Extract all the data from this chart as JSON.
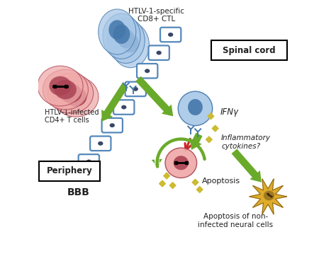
{
  "bg_color": "#ffffff",
  "labels": {
    "htlv_ctls": "HTLV-1-specific\nCD8+ CTL",
    "htlv_cd4": "HTLV-1-infected\nCD4+ T cells",
    "spinal_cord": "Spinal cord",
    "periphery": "Periphery",
    "bbb": "BBB",
    "ifny": "IFNγ",
    "inflammatory": "Inflammatory\ncytokines?",
    "apoptosis": "Apoptosis",
    "apoptosis_neural": "Apoptosis of non-\ninfected neural cells"
  },
  "colors": {
    "blue_cell_outer": "#a8c8e8",
    "blue_cell_inner": "#6699cc",
    "blue_cell_dark": "#4477aa",
    "red_cell_outer": "#f0aaaa",
    "red_cell_inner": "#cc6677",
    "red_cell_dark": "#aa4455",
    "arrow_green": "#6aaa2a",
    "bbb_blue": "#5588bb",
    "nucleus_dark": "#223355",
    "yellow_star": "#ccbb33",
    "neural_yellow": "#ddaa22",
    "neural_dark": "#886622",
    "text_dark": "#222222",
    "red_arrow": "#cc2222"
  }
}
